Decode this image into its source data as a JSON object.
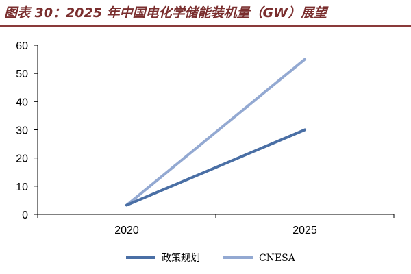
{
  "title": "图表 30：2025 年中国电化学储能装机量（GW）展望",
  "chart_data": {
    "type": "line",
    "title": "",
    "xlabel": "",
    "ylabel": "",
    "categories": [
      "2020",
      "2025"
    ],
    "ylim": [
      0,
      60
    ],
    "yticks": [
      "0",
      "10",
      "20",
      "30",
      "40",
      "50",
      "60"
    ],
    "grid": false,
    "legend_position": "bottom",
    "series": [
      {
        "name": "政策规划",
        "values": [
          3.3,
          30
        ],
        "color": "#4a6fa5"
      },
      {
        "name": "CNESA",
        "values": [
          3.3,
          55
        ],
        "color": "#93a9d2"
      }
    ]
  }
}
